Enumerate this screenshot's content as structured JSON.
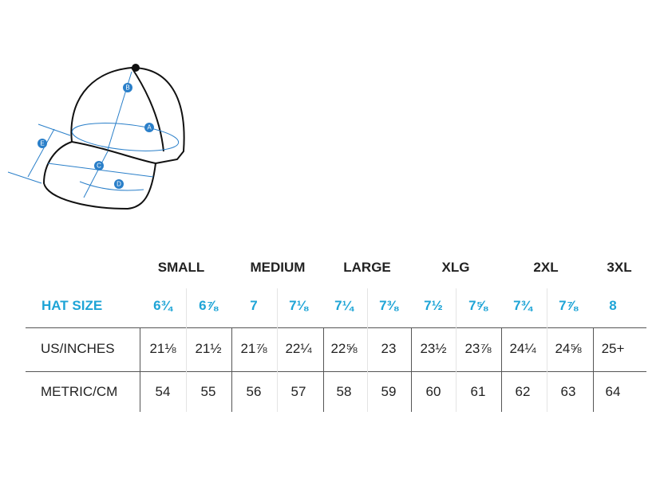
{
  "diagram": {
    "labels": [
      "A",
      "B",
      "C",
      "D",
      "E"
    ]
  },
  "table": {
    "groups": [
      "SMALL",
      "MEDIUM",
      "LARGE",
      "XLG",
      "2XL",
      "3XL"
    ],
    "rows": [
      {
        "label": "HAT SIZE",
        "cells": [
          "6¾",
          "6⅞",
          "7",
          "7⅛",
          "7¼",
          "7⅜",
          "7½",
          "7⅝",
          "7¾",
          "7⅞",
          "8"
        ]
      },
      {
        "label": "US/INCHES",
        "cells": [
          "21⅛",
          "21½",
          "21⅞",
          "22¼",
          "22⅝",
          "23",
          "23½",
          "23⅞",
          "24¼",
          "24⅝",
          "25+"
        ]
      },
      {
        "label": "METRIC/CM",
        "cells": [
          "54",
          "55",
          "56",
          "57",
          "58",
          "59",
          "60",
          "61",
          "62",
          "63",
          "64"
        ]
      }
    ]
  }
}
